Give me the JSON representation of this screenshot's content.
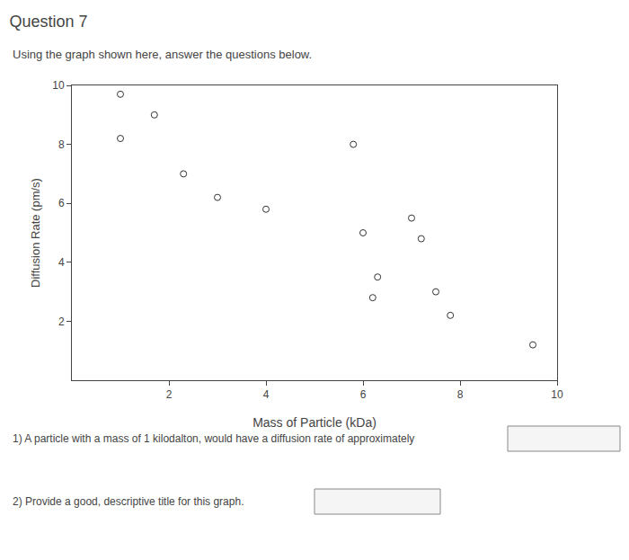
{
  "chart_data": {
    "type": "scatter",
    "title": "Question 7",
    "subtitle": "Using the graph shown here, answer the questions below.",
    "xlabel": "Mass of Particle (kDa)",
    "ylabel": "Diffusion Rate (pm/s)",
    "x": [
      1.0,
      1.7,
      1.0,
      2.3,
      3.0,
      4.0,
      5.8,
      6.0,
      7.0,
      7.2,
      7.5,
      6.2,
      7.8,
      9.5,
      6.3
    ],
    "values": [
      9.7,
      9.0,
      8.2,
      7.0,
      6.2,
      5.8,
      8.0,
      5.0,
      5.5,
      4.8,
      3.0,
      2.8,
      2.2,
      1.2,
      3.5
    ],
    "xlim": [
      0,
      10
    ],
    "ylim": [
      0,
      10
    ],
    "xticks": [
      2,
      4,
      6,
      8,
      10
    ],
    "yticks": [
      2,
      4,
      6,
      8,
      10
    ],
    "color": "#333333",
    "marker": "circle",
    "grid": false,
    "annotations": [
      "1) A particle with a mass of 1 kilodalton, would have a diffusion rate of approximately",
      "2) Provide a good, descriptive title for this graph."
    ]
  }
}
